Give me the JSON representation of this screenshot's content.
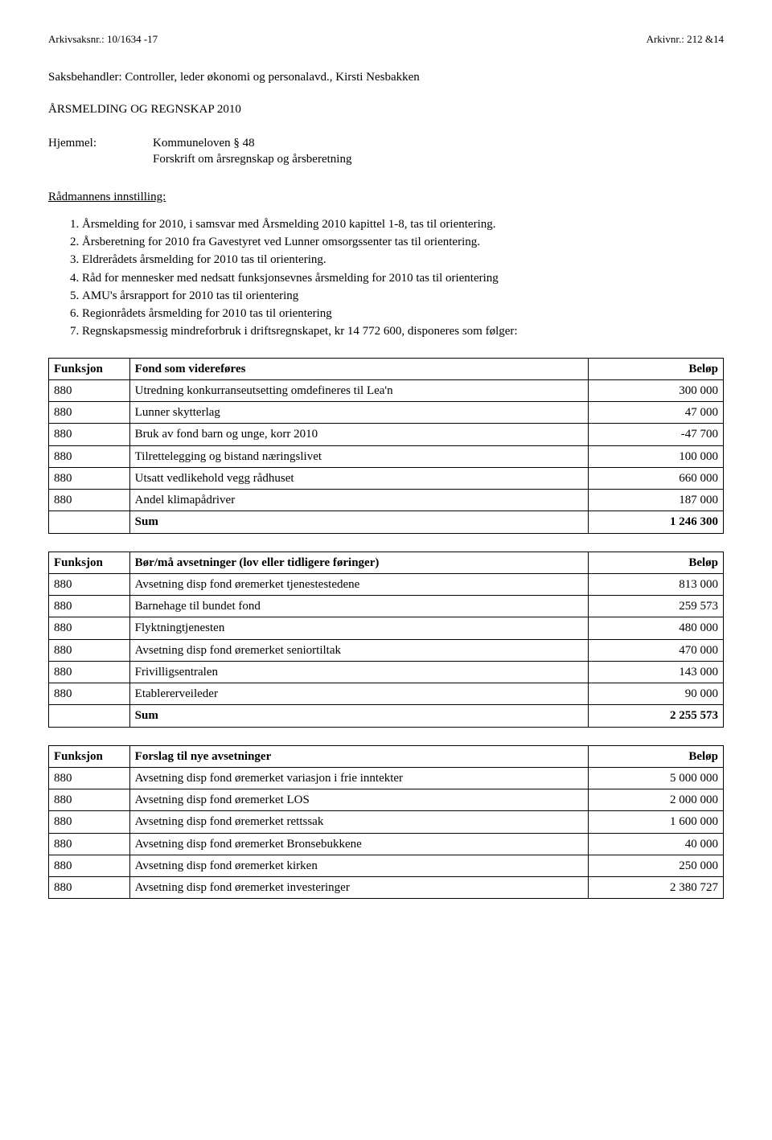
{
  "header": {
    "left_label": "Arkivsaksnr.:",
    "left_value": "10/1634 -17",
    "right_label": "Arkivnr.:",
    "right_value": "212 &14"
  },
  "saksbehandler": {
    "label": "Saksbehandler:",
    "value": "Controller, leder økonomi og personalavd., Kirsti Nesbakken"
  },
  "title": "ÅRSMELDING OG REGNSKAP 2010",
  "hjemmel": {
    "label": "Hjemmel:",
    "line1": "Kommuneloven § 48",
    "line2": "Forskrift om årsregnskap og årsberetning"
  },
  "innstilling_label": "Rådmannens innstilling:",
  "list": {
    "i1": "Årsmelding for 2010, i samsvar med Årsmelding 2010 kapittel 1-8, tas til orientering.",
    "i2": "Årsberetning for 2010 fra Gavestyret ved Lunner omsorgssenter tas til orientering.",
    "i3": "Eldrerådets årsmelding for 2010 tas til orientering.",
    "i4": "Råd for mennesker med nedsatt funksjonsevnes årsmelding for 2010 tas til orientering",
    "i5": "AMU's årsrapport for 2010 tas til orientering",
    "i6": "Regionrådets årsmelding for 2010 tas til orientering",
    "i7": "Regnskapsmessig mindreforbruk i driftsregnskapet, kr 14 772 600, disponeres som følger:"
  },
  "table1": {
    "h_funksjon": "Funksjon",
    "h_desc": "Fond som videreføres",
    "h_belop": "Beløp",
    "rows": [
      {
        "f": "880",
        "d": "Utredning konkurranseutsetting omdefineres til Lea'n",
        "b": "300 000"
      },
      {
        "f": "880",
        "d": "Lunner skytterlag",
        "b": "47 000"
      },
      {
        "f": "880",
        "d": "Bruk av fond barn og unge, korr 2010",
        "b": "-47 700"
      },
      {
        "f": "880",
        "d": "Tilrettelegging og bistand næringslivet",
        "b": "100 000"
      },
      {
        "f": "880",
        "d": "Utsatt vedlikehold vegg rådhuset",
        "b": "660 000"
      },
      {
        "f": "880",
        "d": "Andel klimapådriver",
        "b": "187 000"
      }
    ],
    "sum_label": "Sum",
    "sum_value": "1 246 300"
  },
  "table2": {
    "h_funksjon": "Funksjon",
    "h_desc": "Bør/må avsetninger (lov eller tidligere føringer)",
    "h_belop": "Beløp",
    "rows": [
      {
        "f": "880",
        "d": "Avsetning disp fond øremerket tjenestestedene",
        "b": "813 000"
      },
      {
        "f": "880",
        "d": "Barnehage til bundet fond",
        "b": "259 573"
      },
      {
        "f": "880",
        "d": "Flyktningtjenesten",
        "b": "480 000"
      },
      {
        "f": "880",
        "d": "Avsetning disp fond øremerket seniortiltak",
        "b": "470 000"
      },
      {
        "f": "880",
        "d": "Frivilligsentralen",
        "b": "143 000"
      },
      {
        "f": "880",
        "d": "Etablererveileder",
        "b": "90 000"
      }
    ],
    "sum_label": "Sum",
    "sum_value": "2 255 573"
  },
  "table3": {
    "h_funksjon": "Funksjon",
    "h_desc": "Forslag til nye avsetninger",
    "h_belop": "Beløp",
    "rows": [
      {
        "f": "880",
        "d": "Avsetning disp fond øremerket variasjon i frie inntekter",
        "b": "5 000 000"
      },
      {
        "f": "880",
        "d": "Avsetning disp fond øremerket LOS",
        "b": "2 000 000"
      },
      {
        "f": "880",
        "d": "Avsetning disp fond øremerket rettssak",
        "b": "1 600 000"
      },
      {
        "f": "880",
        "d": "Avsetning disp fond øremerket Bronsebukkene",
        "b": "40 000"
      },
      {
        "f": "880",
        "d": "Avsetning disp fond øremerket kirken",
        "b": "250 000"
      },
      {
        "f": "880",
        "d": "Avsetning disp fond øremerket investeringer",
        "b": "2 380 727"
      }
    ]
  }
}
